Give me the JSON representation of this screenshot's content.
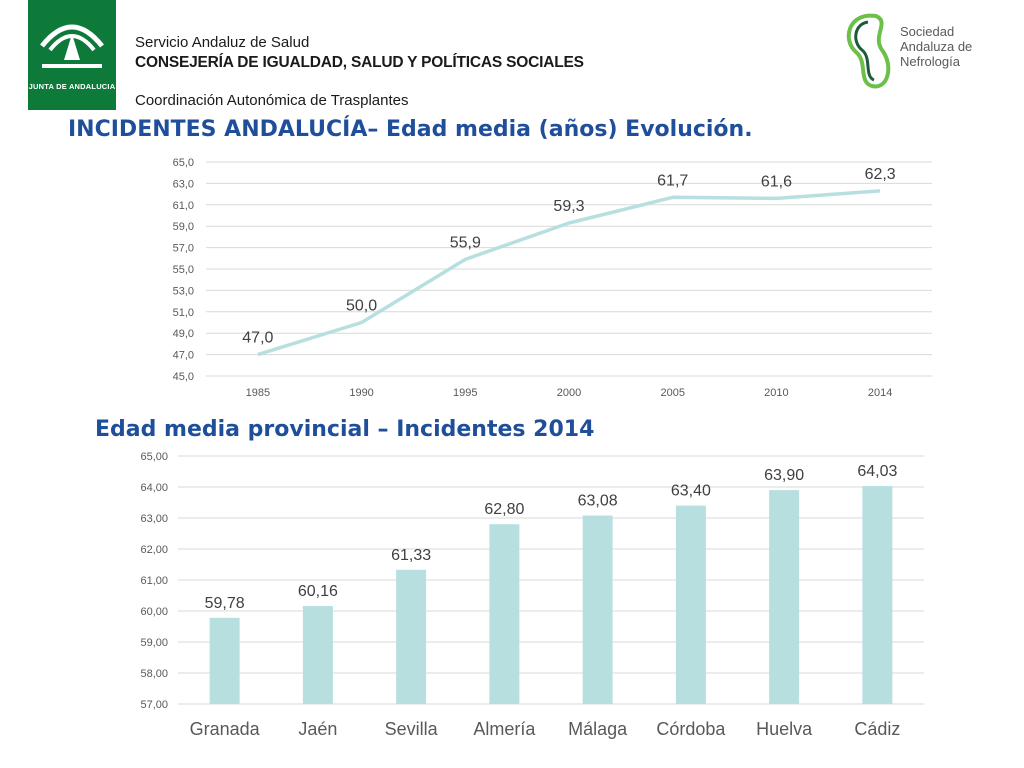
{
  "header": {
    "junta_label": "JUNTA DE ANDALUCIA",
    "service": "Servicio Andaluz de Salud",
    "ministry": "CONSEJERÍA DE IGUALDAD, SALUD Y POLÍTICAS SOCIALES",
    "coordination": "Coordinación Autonómica de Trasplantes",
    "society_line1": "Sociedad",
    "society_line2": "Andaluza de",
    "society_line3": "Nefrología"
  },
  "colors": {
    "brand_green": "#0e7a3a",
    "title_blue": "#1f4e9a",
    "series": "#b7dfe0",
    "grid": "#d9d9d9"
  },
  "chart_data": [
    {
      "type": "line",
      "title": "INCIDENTES ANDALUCÍA– Edad media (años) Evolución.",
      "categories": [
        "1985",
        "1990",
        "1995",
        "2000",
        "2005",
        "2010",
        "2014"
      ],
      "values": [
        47.0,
        50.0,
        55.9,
        59.3,
        61.7,
        61.6,
        62.3
      ],
      "labels": [
        "47,0",
        "50,0",
        "55,9",
        "59,3",
        "61,7",
        "61,6",
        "62,3"
      ],
      "y_ticks": [
        "45,0",
        "47,0",
        "49,0",
        "51,0",
        "53,0",
        "55,0",
        "57,0",
        "59,0",
        "61,0",
        "63,0",
        "65,0"
      ],
      "ylim": [
        45,
        65
      ],
      "grid": true
    },
    {
      "type": "bar",
      "title": "Edad media provincial – Incidentes 2014",
      "categories": [
        "Granada",
        "Jaén",
        "Sevilla",
        "Almería",
        "Málaga",
        "Córdoba",
        "Huelva",
        "Cádiz"
      ],
      "values": [
        59.78,
        60.16,
        61.33,
        62.8,
        63.08,
        63.4,
        63.9,
        64.03
      ],
      "labels": [
        "59,78",
        "60,16",
        "61,33",
        "62,80",
        "63,08",
        "63,40",
        "63,90",
        "64,03"
      ],
      "y_ticks": [
        "57,00",
        "58,00",
        "59,00",
        "60,00",
        "61,00",
        "62,00",
        "63,00",
        "64,00",
        "65,00"
      ],
      "ylim": [
        57,
        65
      ],
      "grid": true
    }
  ]
}
